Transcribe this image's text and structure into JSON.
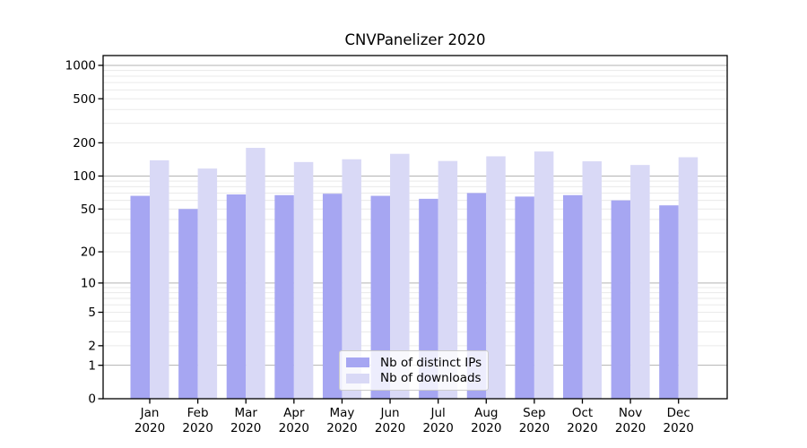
{
  "chart_data": {
    "type": "bar",
    "title": "CNVPanelizer 2020",
    "year": "2020",
    "categories": [
      "Jan",
      "Feb",
      "Mar",
      "Apr",
      "May",
      "Jun",
      "Jul",
      "Aug",
      "Sep",
      "Oct",
      "Nov",
      "Dec"
    ],
    "series": [
      {
        "name": "Nb of distinct IPs",
        "color": "#a6a6f2",
        "values": [
          66,
          50,
          68,
          67,
          69,
          66,
          62,
          70,
          65,
          67,
          60,
          54
        ]
      },
      {
        "name": "Nb of downloads",
        "color": "#d9d9f6",
        "values": [
          139,
          117,
          180,
          134,
          142,
          159,
          137,
          151,
          167,
          136,
          126,
          148
        ]
      }
    ],
    "yscale": "log10(value+1)",
    "yticks": [
      0,
      1,
      2,
      5,
      10,
      20,
      50,
      100,
      200,
      500,
      1000
    ],
    "ylim": [
      0,
      1225
    ],
    "xlabel": "",
    "ylabel": "",
    "grid": "horizontal, major and minor",
    "legend_position": "lower center",
    "colors": {
      "major_grid": "#b3b3b3",
      "minor_grid": "#eaeaea",
      "axis": "#000000",
      "background": "#ffffff"
    }
  }
}
